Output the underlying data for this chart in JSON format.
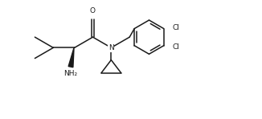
{
  "bg_color": "#ffffff",
  "line_color": "#1a1a1a",
  "line_width": 1.1,
  "font_size_atom": 6.5,
  "figsize": [
    3.26,
    1.48
  ],
  "dpi": 100,
  "xlim": [
    0,
    10.2
  ],
  "ylim": [
    0.2,
    5.2
  ]
}
